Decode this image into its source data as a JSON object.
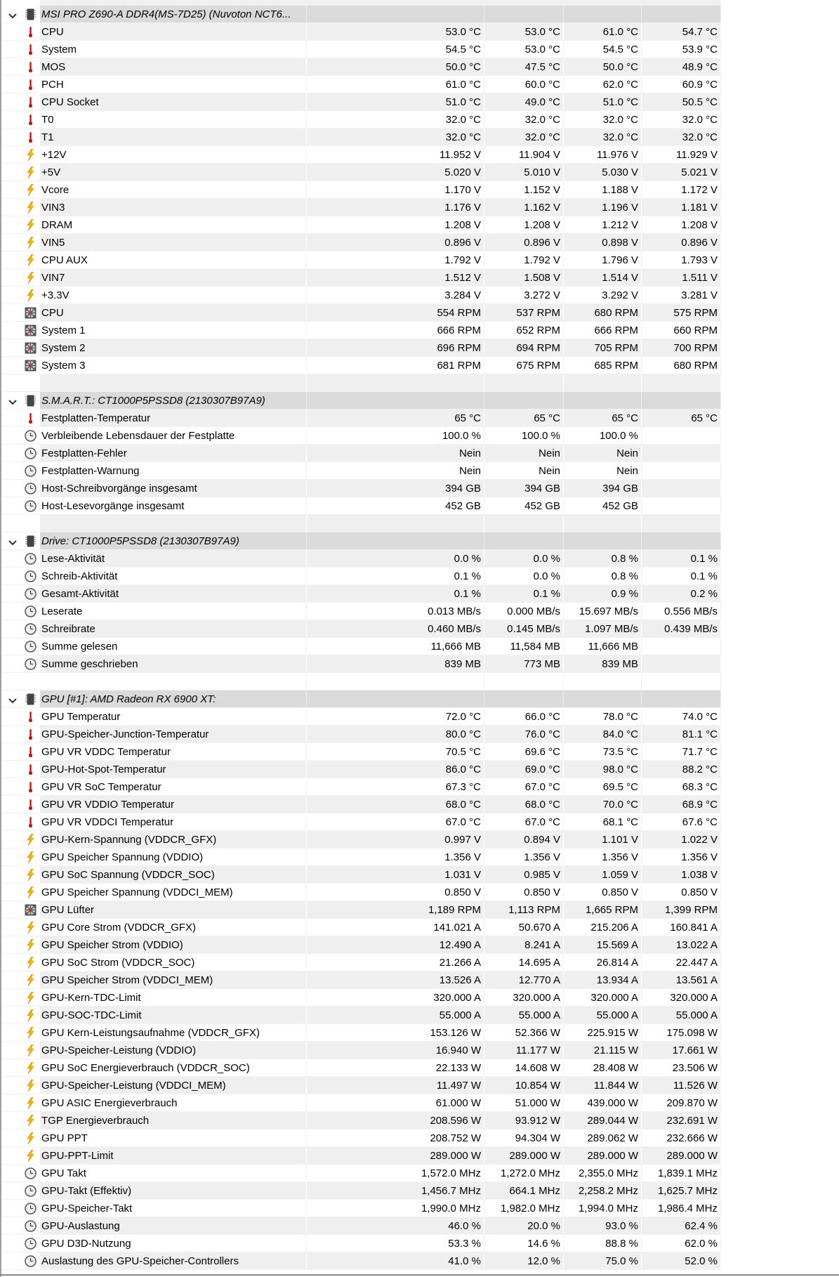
{
  "colors": {
    "header_bg": "#dadada",
    "odd_row_bg": "#efefef",
    "thermometer": "#d01010",
    "lightning": "#f5b400"
  },
  "sections": [
    {
      "title": "MSI PRO Z690-A DDR4(MS-7D25) (Nuvoton NCT6...",
      "items": [
        {
          "icon": "thermometer-icon",
          "name": "CPU",
          "values": [
            "53.0 °C",
            "53.0 °C",
            "61.0 °C",
            "54.7 °C"
          ]
        },
        {
          "icon": "thermometer-icon",
          "name": "System",
          "values": [
            "54.5 °C",
            "53.0 °C",
            "54.5 °C",
            "53.9 °C"
          ]
        },
        {
          "icon": "thermometer-icon",
          "name": "MOS",
          "values": [
            "50.0 °C",
            "47.5 °C",
            "50.0 °C",
            "48.9 °C"
          ]
        },
        {
          "icon": "thermometer-icon",
          "name": "PCH",
          "values": [
            "61.0 °C",
            "60.0 °C",
            "62.0 °C",
            "60.9 °C"
          ]
        },
        {
          "icon": "thermometer-icon",
          "name": "CPU Socket",
          "values": [
            "51.0 °C",
            "49.0 °C",
            "51.0 °C",
            "50.5 °C"
          ]
        },
        {
          "icon": "thermometer-icon",
          "name": "T0",
          "values": [
            "32.0 °C",
            "32.0 °C",
            "32.0 °C",
            "32.0 °C"
          ]
        },
        {
          "icon": "thermometer-icon",
          "name": "T1",
          "values": [
            "32.0 °C",
            "32.0 °C",
            "32.0 °C",
            "32.0 °C"
          ]
        },
        {
          "icon": "lightning-icon",
          "name": "+12V",
          "values": [
            "11.952 V",
            "11.904 V",
            "11.976 V",
            "11.929 V"
          ]
        },
        {
          "icon": "lightning-icon",
          "name": "+5V",
          "values": [
            "5.020 V",
            "5.010 V",
            "5.030 V",
            "5.021 V"
          ]
        },
        {
          "icon": "lightning-icon",
          "name": "Vcore",
          "values": [
            "1.170 V",
            "1.152 V",
            "1.188 V",
            "1.172 V"
          ]
        },
        {
          "icon": "lightning-icon",
          "name": "VIN3",
          "values": [
            "1.176 V",
            "1.162 V",
            "1.196 V",
            "1.181 V"
          ]
        },
        {
          "icon": "lightning-icon",
          "name": "DRAM",
          "values": [
            "1.208 V",
            "1.208 V",
            "1.212 V",
            "1.208 V"
          ]
        },
        {
          "icon": "lightning-icon",
          "name": "VIN5",
          "values": [
            "0.896 V",
            "0.896 V",
            "0.898 V",
            "0.896 V"
          ]
        },
        {
          "icon": "lightning-icon",
          "name": "CPU AUX",
          "values": [
            "1.792 V",
            "1.792 V",
            "1.796 V",
            "1.793 V"
          ]
        },
        {
          "icon": "lightning-icon",
          "name": "VIN7",
          "values": [
            "1.512 V",
            "1.508 V",
            "1.514 V",
            "1.511 V"
          ]
        },
        {
          "icon": "lightning-icon",
          "name": "+3.3V",
          "values": [
            "3.284 V",
            "3.272 V",
            "3.292 V",
            "3.281 V"
          ]
        },
        {
          "icon": "fan-icon",
          "name": "CPU",
          "values": [
            "554 RPM",
            "537 RPM",
            "680 RPM",
            "575 RPM"
          ]
        },
        {
          "icon": "fan-icon",
          "name": "System 1",
          "values": [
            "666 RPM",
            "652 RPM",
            "666 RPM",
            "660 RPM"
          ]
        },
        {
          "icon": "fan-icon",
          "name": "System 2",
          "values": [
            "696 RPM",
            "694 RPM",
            "705 RPM",
            "700 RPM"
          ]
        },
        {
          "icon": "fan-icon",
          "name": "System 3",
          "values": [
            "681 RPM",
            "675 RPM",
            "685 RPM",
            "680 RPM"
          ]
        }
      ]
    },
    {
      "title": "S.M.A.R.T.: CT1000P5PSSD8 (2130307B97A9)",
      "items": [
        {
          "icon": "thermometer-icon",
          "name": "Festplatten-Temperatur",
          "values": [
            "65 °C",
            "65 °C",
            "65 °C",
            "65 °C"
          ]
        },
        {
          "icon": "clock-icon",
          "name": "Verbleibende Lebensdauer der Festplatte",
          "values": [
            "100.0 %",
            "100.0 %",
            "100.0 %",
            ""
          ]
        },
        {
          "icon": "clock-icon",
          "name": "Festplatten-Fehler",
          "values": [
            "Nein",
            "Nein",
            "Nein",
            ""
          ]
        },
        {
          "icon": "clock-icon",
          "name": "Festplatten-Warnung",
          "values": [
            "Nein",
            "Nein",
            "Nein",
            ""
          ]
        },
        {
          "icon": "clock-icon",
          "name": "Host-Schreibvorgänge insgesamt",
          "values": [
            "394 GB",
            "394 GB",
            "394 GB",
            ""
          ]
        },
        {
          "icon": "clock-icon",
          "name": "Host-Lesevorgänge insgesamt",
          "values": [
            "452 GB",
            "452 GB",
            "452 GB",
            ""
          ]
        }
      ]
    },
    {
      "title": "Drive: CT1000P5PSSD8 (2130307B97A9)",
      "items": [
        {
          "icon": "clock-icon",
          "name": "Lese-Aktivität",
          "values": [
            "0.0 %",
            "0.0 %",
            "0.8 %",
            "0.1 %"
          ]
        },
        {
          "icon": "clock-icon",
          "name": "Schreib-Aktivität",
          "values": [
            "0.1 %",
            "0.0 %",
            "0.8 %",
            "0.1 %"
          ]
        },
        {
          "icon": "clock-icon",
          "name": "Gesamt-Aktivität",
          "values": [
            "0.1 %",
            "0.1 %",
            "0.9 %",
            "0.2 %"
          ]
        },
        {
          "icon": "clock-icon",
          "name": "Leserate",
          "values": [
            "0.013 MB/s",
            "0.000 MB/s",
            "15.697 MB/s",
            "0.556 MB/s"
          ]
        },
        {
          "icon": "clock-icon",
          "name": "Schreibrate",
          "values": [
            "0.460 MB/s",
            "0.145 MB/s",
            "1.097 MB/s",
            "0.439 MB/s"
          ]
        },
        {
          "icon": "clock-icon",
          "name": "Summe gelesen",
          "values": [
            "11,666 MB",
            "11,584 MB",
            "11,666 MB",
            ""
          ]
        },
        {
          "icon": "clock-icon",
          "name": "Summe geschrieben",
          "values": [
            "839 MB",
            "773 MB",
            "839 MB",
            ""
          ]
        }
      ]
    },
    {
      "title": "GPU [#1]: AMD Radeon RX 6900 XT:",
      "items": [
        {
          "icon": "thermometer-icon",
          "name": "GPU Temperatur",
          "values": [
            "72.0 °C",
            "66.0 °C",
            "78.0 °C",
            "74.0 °C"
          ]
        },
        {
          "icon": "thermometer-icon",
          "name": "GPU-Speicher-Junction-Temperatur",
          "values": [
            "80.0 °C",
            "76.0 °C",
            "84.0 °C",
            "81.1 °C"
          ]
        },
        {
          "icon": "thermometer-icon",
          "name": "GPU VR VDDC Temperatur",
          "values": [
            "70.5 °C",
            "69.6 °C",
            "73.5 °C",
            "71.7 °C"
          ]
        },
        {
          "icon": "thermometer-icon",
          "name": "GPU-Hot-Spot-Temperatur",
          "values": [
            "86.0 °C",
            "69.0 °C",
            "98.0 °C",
            "88.2 °C"
          ]
        },
        {
          "icon": "thermometer-icon",
          "name": "GPU VR SoC Temperatur",
          "values": [
            "67.3 °C",
            "67.0 °C",
            "69.5 °C",
            "68.3 °C"
          ]
        },
        {
          "icon": "thermometer-icon",
          "name": "GPU VR VDDIO Temperatur",
          "values": [
            "68.0 °C",
            "68.0 °C",
            "70.0 °C",
            "68.9 °C"
          ]
        },
        {
          "icon": "thermometer-icon",
          "name": "GPU VR VDDCI Temperatur",
          "values": [
            "67.0 °C",
            "67.0 °C",
            "68.1 °C",
            "67.6 °C"
          ]
        },
        {
          "icon": "lightning-icon",
          "name": "GPU-Kern-Spannung (VDDCR_GFX)",
          "values": [
            "0.997 V",
            "0.894 V",
            "1.101 V",
            "1.022 V"
          ]
        },
        {
          "icon": "lightning-icon",
          "name": "GPU Speicher Spannung (VDDIO)",
          "values": [
            "1.356 V",
            "1.356 V",
            "1.356 V",
            "1.356 V"
          ]
        },
        {
          "icon": "lightning-icon",
          "name": "GPU SoC Spannung (VDDCR_SOC)",
          "values": [
            "1.031 V",
            "0.985 V",
            "1.059 V",
            "1.038 V"
          ]
        },
        {
          "icon": "lightning-icon",
          "name": "GPU Speicher Spannung (VDDCI_MEM)",
          "values": [
            "0.850 V",
            "0.850 V",
            "0.850 V",
            "0.850 V"
          ]
        },
        {
          "icon": "fan-icon",
          "name": "GPU Lüfter",
          "values": [
            "1,189 RPM",
            "1,113 RPM",
            "1,665 RPM",
            "1,399 RPM"
          ]
        },
        {
          "icon": "lightning-icon",
          "name": "GPU Core Strom (VDDCR_GFX)",
          "values": [
            "141.021 A",
            "50.670 A",
            "215.206 A",
            "160.841 A"
          ]
        },
        {
          "icon": "lightning-icon",
          "name": "GPU Speicher Strom (VDDIO)",
          "values": [
            "12.490 A",
            "8.241 A",
            "15.569 A",
            "13.022 A"
          ]
        },
        {
          "icon": "lightning-icon",
          "name": "GPU SoC Strom (VDDCR_SOC)",
          "values": [
            "21.266 A",
            "14.695 A",
            "26.814 A",
            "22.447 A"
          ]
        },
        {
          "icon": "lightning-icon",
          "name": "GPU Speicher Strom (VDDCI_MEM)",
          "values": [
            "13.526 A",
            "12.770 A",
            "13.934 A",
            "13.561 A"
          ]
        },
        {
          "icon": "lightning-icon",
          "name": "GPU-Kern-TDC-Limit",
          "values": [
            "320.000 A",
            "320.000 A",
            "320.000 A",
            "320.000 A"
          ]
        },
        {
          "icon": "lightning-icon",
          "name": "GPU-SOC-TDC-Limit",
          "values": [
            "55.000 A",
            "55.000 A",
            "55.000 A",
            "55.000 A"
          ]
        },
        {
          "icon": "lightning-icon",
          "name": "GPU Kern-Leistungsaufnahme (VDDCR_GFX)",
          "values": [
            "153.126 W",
            "52.366 W",
            "225.915 W",
            "175.098 W"
          ]
        },
        {
          "icon": "lightning-icon",
          "name": "GPU-Speicher-Leistung (VDDIO)",
          "values": [
            "16.940 W",
            "11.177 W",
            "21.115 W",
            "17.661 W"
          ]
        },
        {
          "icon": "lightning-icon",
          "name": "GPU SoC Energieverbrauch (VDDCR_SOC)",
          "values": [
            "22.133 W",
            "14.608 W",
            "28.408 W",
            "23.506 W"
          ]
        },
        {
          "icon": "lightning-icon",
          "name": "GPU-Speicher-Leistung (VDDCI_MEM)",
          "values": [
            "11.497 W",
            "10.854 W",
            "11.844 W",
            "11.526 W"
          ]
        },
        {
          "icon": "lightning-icon",
          "name": "GPU ASIC Energieverbrauch",
          "values": [
            "61.000 W",
            "51.000 W",
            "439.000 W",
            "209.870 W"
          ]
        },
        {
          "icon": "lightning-icon",
          "name": "TGP Energieverbrauch",
          "values": [
            "208.596 W",
            "93.912 W",
            "289.044 W",
            "232.691 W"
          ]
        },
        {
          "icon": "lightning-icon",
          "name": "GPU PPT",
          "values": [
            "208.752 W",
            "94.304 W",
            "289.062 W",
            "232.666 W"
          ]
        },
        {
          "icon": "lightning-icon",
          "name": "GPU-PPT-Limit",
          "values": [
            "289.000 W",
            "289.000 W",
            "289.000 W",
            "289.000 W"
          ]
        },
        {
          "icon": "clock-icon",
          "name": "GPU Takt",
          "values": [
            "1,572.0 MHz",
            "1,272.0 MHz",
            "2,355.0 MHz",
            "1,839.1 MHz"
          ]
        },
        {
          "icon": "clock-icon",
          "name": "GPU-Takt (Effektiv)",
          "values": [
            "1,456.7 MHz",
            "664.1 MHz",
            "2,258.2 MHz",
            "1,625.7 MHz"
          ]
        },
        {
          "icon": "clock-icon",
          "name": "GPU-Speicher-Takt",
          "values": [
            "1,990.0 MHz",
            "1,982.0 MHz",
            "1,994.0 MHz",
            "1,986.4 MHz"
          ]
        },
        {
          "icon": "clock-icon",
          "name": "GPU-Auslastung",
          "values": [
            "46.0 %",
            "20.0 %",
            "93.0 %",
            "62.4 %"
          ]
        },
        {
          "icon": "clock-icon",
          "name": "GPU D3D-Nutzung",
          "values": [
            "53.3 %",
            "14.6 %",
            "88.8 %",
            "62.0 %"
          ]
        },
        {
          "icon": "clock-icon",
          "name": "Auslastung des GPU-Speicher-Controllers",
          "values": [
            "41.0 %",
            "12.0 %",
            "75.0 %",
            "52.0 %"
          ]
        }
      ]
    }
  ]
}
